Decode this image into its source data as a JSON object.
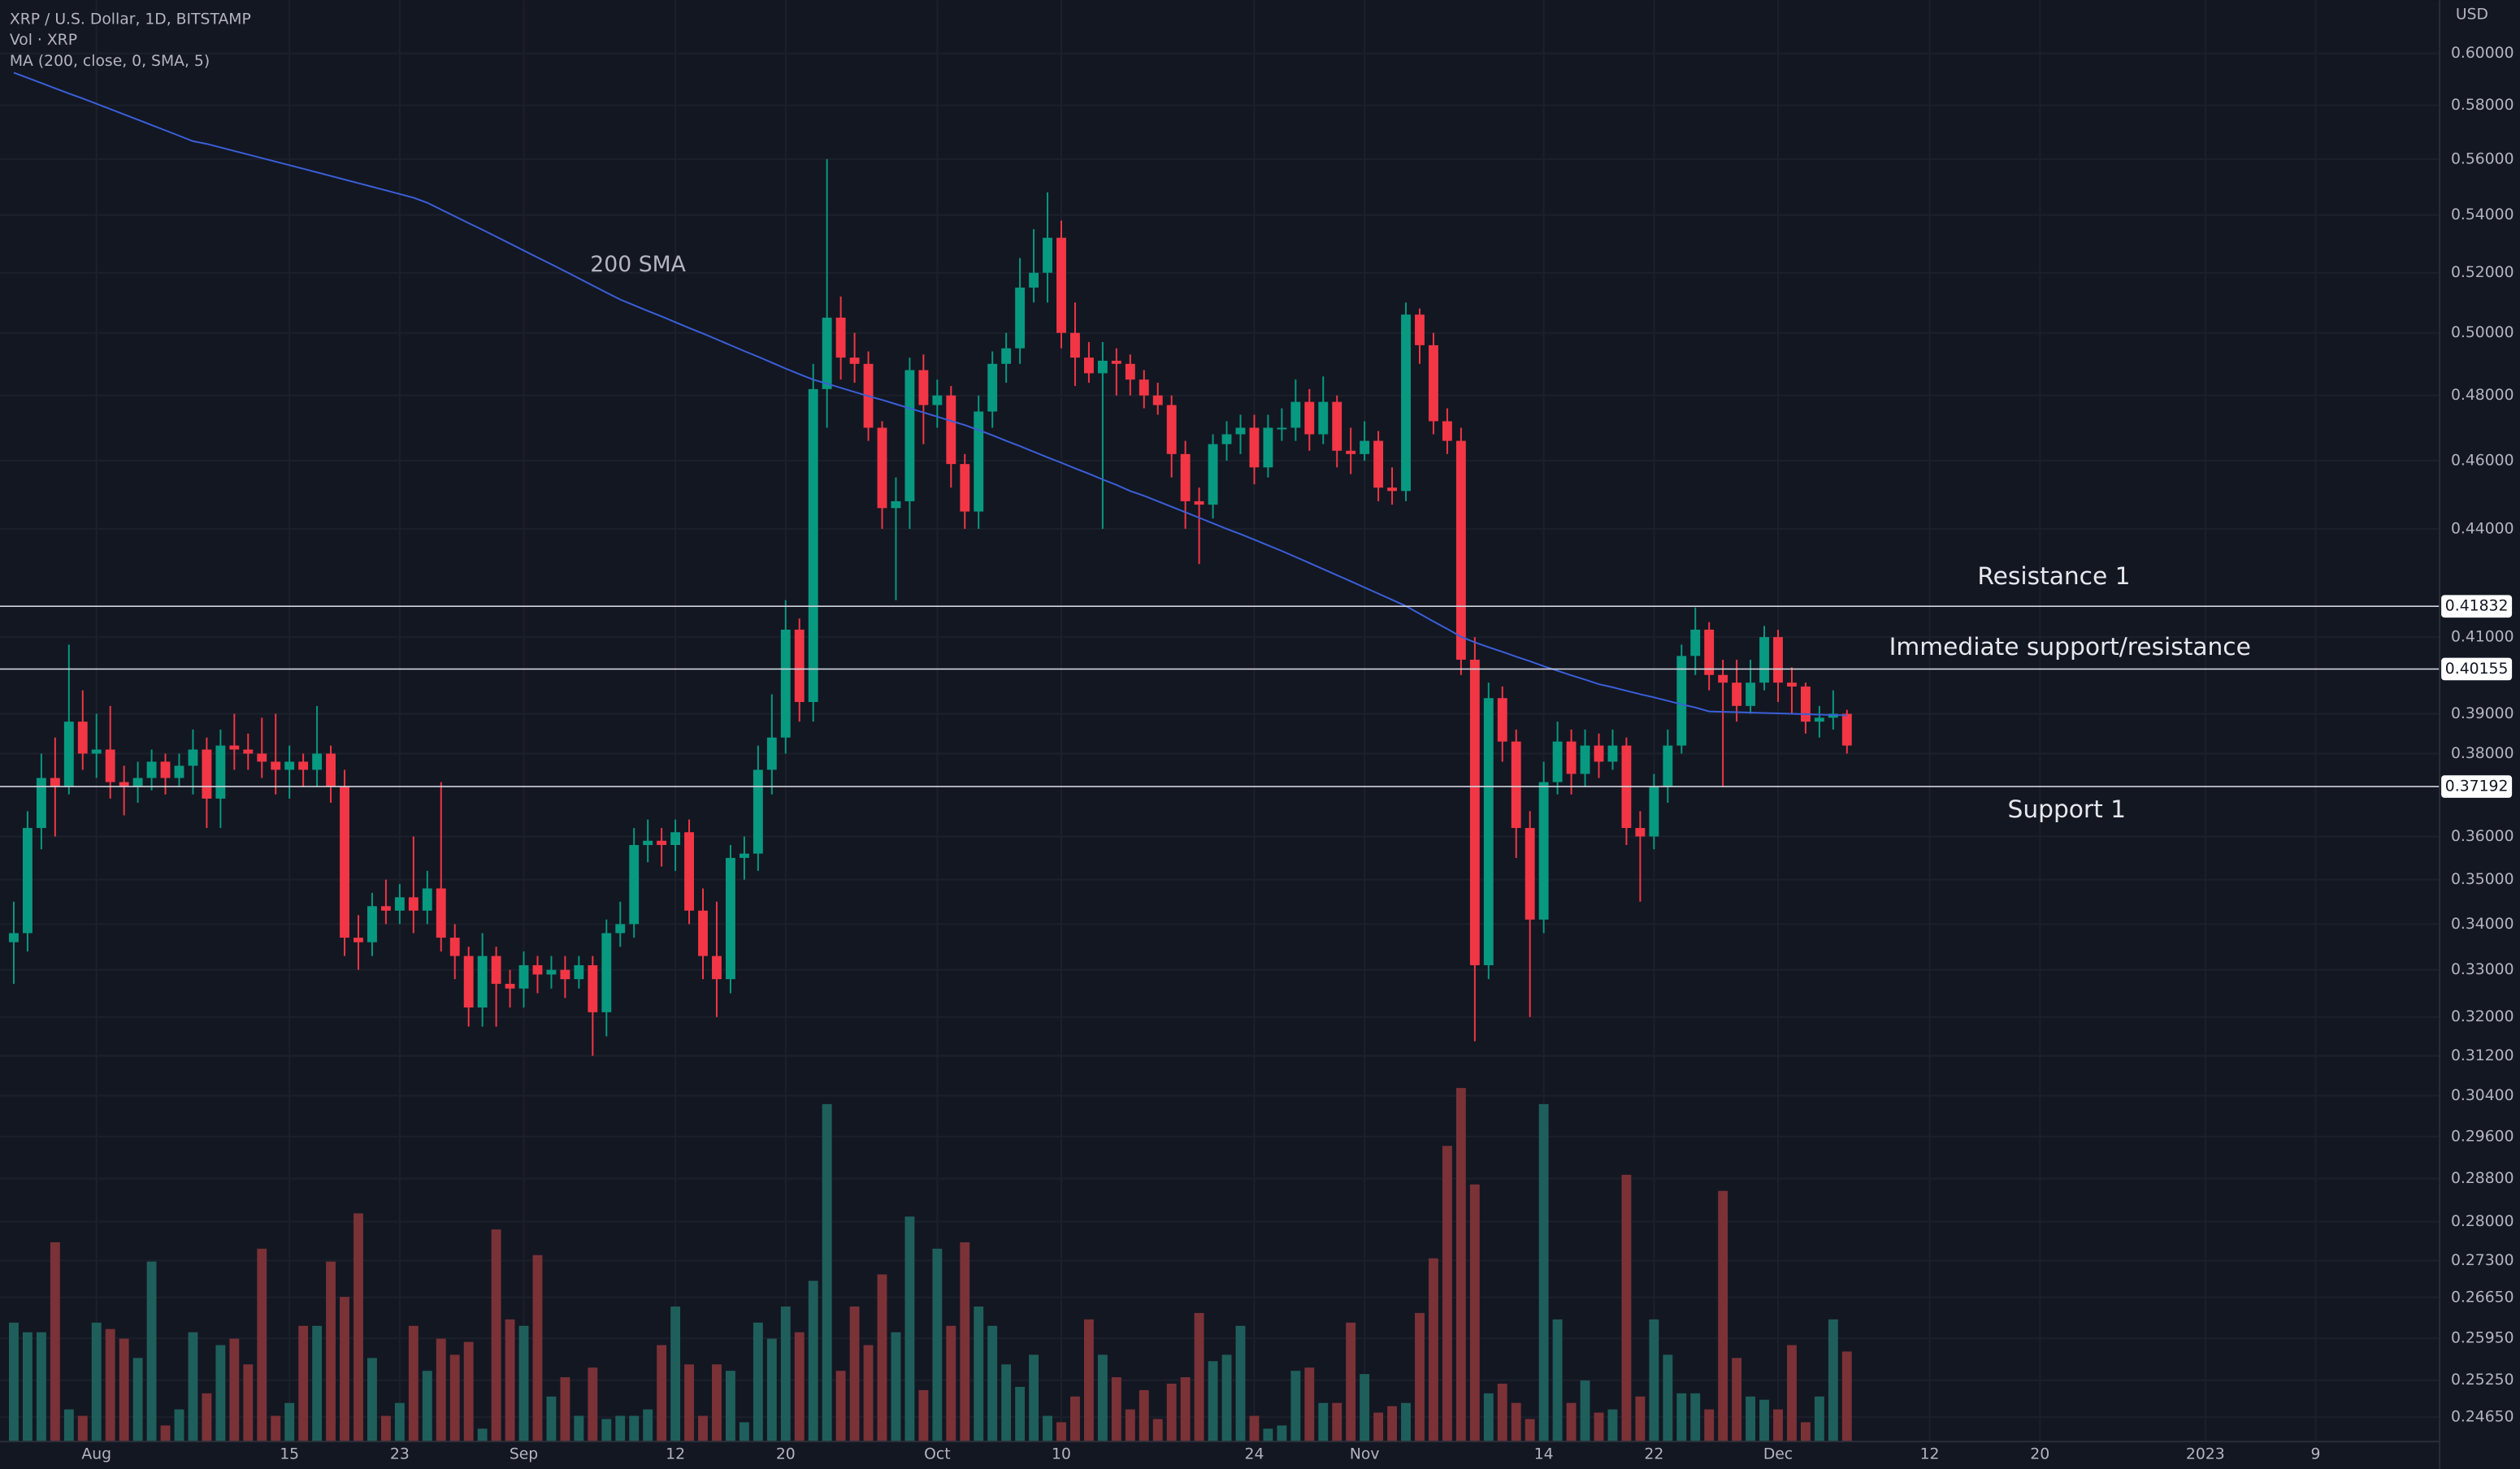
{
  "chart_data": {
    "type": "candlestick",
    "title": "XRP / U.S. Dollar, 1D, BITSTAMP",
    "volume_label": "Vol · XRP",
    "currency": "USD",
    "log_scale": true,
    "grid": true,
    "up_color": "#089981",
    "down_color": "#f23645",
    "volume_up_color": "#1f5f5b",
    "volume_down_color": "#7a3237",
    "xlim": [
      "2022-07-25",
      "2023-01-18"
    ],
    "xticks": [
      {
        "value": "2022-08-01",
        "label": "Aug"
      },
      {
        "value": "2022-08-15",
        "label": "15"
      },
      {
        "value": "2022-08-23",
        "label": "23"
      },
      {
        "value": "2022-09-01",
        "label": "Sep"
      },
      {
        "value": "2022-09-12",
        "label": "12"
      },
      {
        "value": "2022-09-20",
        "label": "20"
      },
      {
        "value": "2022-10-01",
        "label": "Oct"
      },
      {
        "value": "2022-10-10",
        "label": "10"
      },
      {
        "value": "2022-10-24",
        "label": "24"
      },
      {
        "value": "2022-11-01",
        "label": "Nov"
      },
      {
        "value": "2022-11-14",
        "label": "14"
      },
      {
        "value": "2022-11-22",
        "label": "22"
      },
      {
        "value": "2022-12-01",
        "label": "Dec"
      },
      {
        "value": "2022-12-12",
        "label": "12"
      },
      {
        "value": "2022-12-20",
        "label": "20"
      },
      {
        "value": "2023-01-01",
        "label": "2023"
      },
      {
        "value": "2023-01-09",
        "label": "9"
      }
    ],
    "ylim": [
      0.2426,
      0.6212
    ],
    "yticks": [
      {
        "value": 0.6,
        "label": "0.60000"
      },
      {
        "value": 0.58,
        "label": "0.58000"
      },
      {
        "value": 0.56,
        "label": "0.56000"
      },
      {
        "value": 0.54,
        "label": "0.54000"
      },
      {
        "value": 0.52,
        "label": "0.52000"
      },
      {
        "value": 0.5,
        "label": "0.50000"
      },
      {
        "value": 0.48,
        "label": "0.48000"
      },
      {
        "value": 0.46,
        "label": "0.46000"
      },
      {
        "value": 0.44,
        "label": "0.44000"
      },
      {
        "value": 0.41,
        "label": "0.41000"
      },
      {
        "value": 0.39,
        "label": "0.39000"
      },
      {
        "value": 0.38,
        "label": "0.38000"
      },
      {
        "value": 0.36,
        "label": "0.36000"
      },
      {
        "value": 0.35,
        "label": "0.35000"
      },
      {
        "value": 0.34,
        "label": "0.34000"
      },
      {
        "value": 0.33,
        "label": "0.33000"
      },
      {
        "value": 0.32,
        "label": "0.32000"
      },
      {
        "value": 0.312,
        "label": "0.31200"
      },
      {
        "value": 0.304,
        "label": "0.30400"
      },
      {
        "value": 0.296,
        "label": "0.29600"
      },
      {
        "value": 0.288,
        "label": "0.28800"
      },
      {
        "value": 0.28,
        "label": "0.28000"
      },
      {
        "value": 0.273,
        "label": "0.27300"
      },
      {
        "value": 0.2665,
        "label": "0.26650"
      },
      {
        "value": 0.2595,
        "label": "0.25950"
      },
      {
        "value": 0.2525,
        "label": "0.25250"
      },
      {
        "value": 0.2465,
        "label": "0.24650"
      }
    ],
    "volume_lim": [
      0,
      120
    ],
    "x": [
      "2022-07-26",
      "2022-07-27",
      "2022-07-28",
      "2022-07-29",
      "2022-07-30",
      "2022-07-31",
      "2022-08-01",
      "2022-08-02",
      "2022-08-03",
      "2022-08-04",
      "2022-08-05",
      "2022-08-06",
      "2022-08-07",
      "2022-08-08",
      "2022-08-09",
      "2022-08-10",
      "2022-08-11",
      "2022-08-12",
      "2022-08-13",
      "2022-08-14",
      "2022-08-15",
      "2022-08-16",
      "2022-08-17",
      "2022-08-18",
      "2022-08-19",
      "2022-08-20",
      "2022-08-21",
      "2022-08-22",
      "2022-08-23",
      "2022-08-24",
      "2022-08-25",
      "2022-08-26",
      "2022-08-27",
      "2022-08-28",
      "2022-08-29",
      "2022-08-30",
      "2022-08-31",
      "2022-09-01",
      "2022-09-02",
      "2022-09-03",
      "2022-09-04",
      "2022-09-05",
      "2022-09-06",
      "2022-09-07",
      "2022-09-08",
      "2022-09-09",
      "2022-09-10",
      "2022-09-11",
      "2022-09-12",
      "2022-09-13",
      "2022-09-14",
      "2022-09-15",
      "2022-09-16",
      "2022-09-17",
      "2022-09-18",
      "2022-09-19",
      "2022-09-20",
      "2022-09-21",
      "2022-09-22",
      "2022-09-23",
      "2022-09-24",
      "2022-09-25",
      "2022-09-26",
      "2022-09-27",
      "2022-09-28",
      "2022-09-29",
      "2022-09-30",
      "2022-10-01",
      "2022-10-02",
      "2022-10-03",
      "2022-10-04",
      "2022-10-05",
      "2022-10-06",
      "2022-10-07",
      "2022-10-08",
      "2022-10-09",
      "2022-10-10",
      "2022-10-11",
      "2022-10-12",
      "2022-10-13",
      "2022-10-14",
      "2022-10-15",
      "2022-10-16",
      "2022-10-17",
      "2022-10-18",
      "2022-10-19",
      "2022-10-20",
      "2022-10-21",
      "2022-10-22",
      "2022-10-23",
      "2022-10-24",
      "2022-10-25",
      "2022-10-26",
      "2022-10-27",
      "2022-10-28",
      "2022-10-29",
      "2022-10-30",
      "2022-10-31",
      "2022-11-01",
      "2022-11-02",
      "2022-11-03",
      "2022-11-04",
      "2022-11-05",
      "2022-11-06",
      "2022-11-07",
      "2022-11-08",
      "2022-11-09",
      "2022-11-10",
      "2022-11-11",
      "2022-11-12",
      "2022-11-13",
      "2022-11-14",
      "2022-11-15",
      "2022-11-16",
      "2022-11-17",
      "2022-11-18",
      "2022-11-19",
      "2022-11-20",
      "2022-11-21",
      "2022-11-22",
      "2022-11-23",
      "2022-11-24",
      "2022-11-25",
      "2022-11-26",
      "2022-11-27",
      "2022-11-28",
      "2022-11-29",
      "2022-11-30",
      "2022-12-01",
      "2022-12-02",
      "2022-12-03",
      "2022-12-04",
      "2022-12-05",
      "2022-12-06"
    ],
    "open": [
      0.336,
      0.338,
      0.362,
      0.374,
      0.372,
      0.388,
      0.38,
      0.381,
      0.373,
      0.372,
      0.374,
      0.378,
      0.374,
      0.377,
      0.381,
      0.369,
      0.382,
      0.381,
      0.38,
      0.378,
      0.376,
      0.378,
      0.376,
      0.38,
      0.372,
      0.337,
      0.336,
      0.344,
      0.343,
      0.346,
      0.343,
      0.348,
      0.337,
      0.333,
      0.322,
      0.333,
      0.327,
      0.326,
      0.331,
      0.329,
      0.33,
      0.328,
      0.331,
      0.321,
      0.338,
      0.34,
      0.358,
      0.359,
      0.358,
      0.361,
      0.343,
      0.333,
      0.328,
      0.355,
      0.356,
      0.376,
      0.384,
      0.412,
      0.393,
      0.482,
      0.505,
      0.492,
      0.49,
      0.47,
      0.446,
      0.448,
      0.488,
      0.477,
      0.48,
      0.459,
      0.445,
      0.475,
      0.49,
      0.495,
      0.515,
      0.52,
      0.532,
      0.5,
      0.492,
      0.487,
      0.491,
      0.49,
      0.485,
      0.48,
      0.477,
      0.462,
      0.448,
      0.447,
      0.465,
      0.468,
      0.47,
      0.458,
      0.47,
      0.47,
      0.478,
      0.468,
      0.478,
      0.463,
      0.462,
      0.466,
      0.452,
      0.451,
      0.506,
      0.496,
      0.472,
      0.466,
      0.404,
      0.331,
      0.394,
      0.383,
      0.362,
      0.341,
      0.373,
      0.383,
      0.375,
      0.382,
      0.378,
      0.382,
      0.362,
      0.36,
      0.372,
      0.382,
      0.405,
      0.412,
      0.4,
      0.398,
      0.392,
      0.398,
      0.41,
      0.398,
      0.397,
      0.388,
      0.389,
      0.39
    ],
    "high": [
      0.345,
      0.366,
      0.38,
      0.384,
      0.408,
      0.396,
      0.39,
      0.392,
      0.377,
      0.378,
      0.381,
      0.38,
      0.38,
      0.386,
      0.384,
      0.386,
      0.39,
      0.385,
      0.389,
      0.39,
      0.382,
      0.38,
      0.392,
      0.382,
      0.376,
      0.342,
      0.347,
      0.35,
      0.349,
      0.36,
      0.352,
      0.373,
      0.34,
      0.335,
      0.338,
      0.335,
      0.33,
      0.334,
      0.333,
      0.333,
      0.333,
      0.333,
      0.333,
      0.341,
      0.345,
      0.362,
      0.364,
      0.362,
      0.364,
      0.364,
      0.348,
      0.345,
      0.358,
      0.36,
      0.382,
      0.395,
      0.42,
      0.415,
      0.49,
      0.56,
      0.512,
      0.5,
      0.494,
      0.472,
      0.455,
      0.492,
      0.493,
      0.485,
      0.483,
      0.462,
      0.48,
      0.494,
      0.5,
      0.525,
      0.535,
      0.548,
      0.538,
      0.51,
      0.497,
      0.497,
      0.495,
      0.493,
      0.488,
      0.484,
      0.48,
      0.466,
      0.452,
      0.468,
      0.472,
      0.474,
      0.474,
      0.474,
      0.476,
      0.485,
      0.482,
      0.486,
      0.48,
      0.47,
      0.472,
      0.469,
      0.458,
      0.51,
      0.508,
      0.5,
      0.476,
      0.47,
      0.41,
      0.398,
      0.397,
      0.386,
      0.366,
      0.378,
      0.388,
      0.386,
      0.386,
      0.385,
      0.386,
      0.384,
      0.366,
      0.375,
      0.386,
      0.408,
      0.418,
      0.414,
      0.404,
      0.404,
      0.404,
      0.413,
      0.412,
      0.402,
      0.398,
      0.392,
      0.396,
      0.391
    ],
    "low": [
      0.327,
      0.334,
      0.357,
      0.36,
      0.37,
      0.376,
      0.374,
      0.369,
      0.365,
      0.368,
      0.371,
      0.37,
      0.372,
      0.37,
      0.362,
      0.362,
      0.376,
      0.376,
      0.374,
      0.37,
      0.369,
      0.372,
      0.372,
      0.368,
      0.333,
      0.33,
      0.333,
      0.34,
      0.34,
      0.338,
      0.34,
      0.334,
      0.328,
      0.318,
      0.318,
      0.318,
      0.322,
      0.322,
      0.325,
      0.326,
      0.324,
      0.326,
      0.312,
      0.316,
      0.335,
      0.337,
      0.354,
      0.353,
      0.352,
      0.34,
      0.328,
      0.32,
      0.325,
      0.35,
      0.352,
      0.37,
      0.38,
      0.388,
      0.388,
      0.47,
      0.485,
      0.484,
      0.466,
      0.44,
      0.42,
      0.44,
      0.465,
      0.47,
      0.452,
      0.44,
      0.44,
      0.47,
      0.484,
      0.49,
      0.51,
      0.51,
      0.495,
      0.483,
      0.484,
      0.44,
      0.48,
      0.48,
      0.476,
      0.474,
      0.455,
      0.44,
      0.43,
      0.443,
      0.46,
      0.462,
      0.453,
      0.455,
      0.466,
      0.466,
      0.463,
      0.465,
      0.458,
      0.456,
      0.46,
      0.448,
      0.447,
      0.448,
      0.49,
      0.468,
      0.462,
      0.4,
      0.315,
      0.328,
      0.378,
      0.355,
      0.32,
      0.338,
      0.37,
      0.37,
      0.372,
      0.374,
      0.376,
      0.358,
      0.345,
      0.357,
      0.368,
      0.38,
      0.4,
      0.396,
      0.372,
      0.388,
      0.39,
      0.396,
      0.393,
      0.39,
      0.385,
      0.384,
      0.386,
      0.38
    ],
    "close": [
      0.338,
      0.362,
      0.374,
      0.372,
      0.388,
      0.38,
      0.381,
      0.373,
      0.372,
      0.374,
      0.378,
      0.374,
      0.377,
      0.381,
      0.369,
      0.382,
      0.381,
      0.38,
      0.378,
      0.376,
      0.378,
      0.376,
      0.38,
      0.372,
      0.337,
      0.336,
      0.344,
      0.343,
      0.346,
      0.343,
      0.348,
      0.337,
      0.333,
      0.322,
      0.333,
      0.327,
      0.326,
      0.331,
      0.329,
      0.33,
      0.328,
      0.331,
      0.321,
      0.338,
      0.34,
      0.358,
      0.359,
      0.358,
      0.361,
      0.343,
      0.333,
      0.328,
      0.355,
      0.356,
      0.376,
      0.384,
      0.412,
      0.393,
      0.482,
      0.505,
      0.492,
      0.49,
      0.47,
      0.446,
      0.448,
      0.488,
      0.477,
      0.48,
      0.459,
      0.445,
      0.475,
      0.49,
      0.495,
      0.515,
      0.52,
      0.532,
      0.5,
      0.492,
      0.487,
      0.491,
      0.49,
      0.485,
      0.48,
      0.477,
      0.462,
      0.448,
      0.447,
      0.465,
      0.468,
      0.47,
      0.458,
      0.47,
      0.47,
      0.478,
      0.468,
      0.478,
      0.463,
      0.462,
      0.466,
      0.452,
      0.451,
      0.506,
      0.496,
      0.472,
      0.466,
      0.404,
      0.331,
      0.394,
      0.383,
      0.362,
      0.341,
      0.373,
      0.383,
      0.375,
      0.382,
      0.378,
      0.382,
      0.362,
      0.36,
      0.372,
      0.382,
      0.405,
      0.412,
      0.4,
      0.398,
      0.392,
      0.398,
      0.41,
      0.398,
      0.397,
      0.388,
      0.389,
      0.39,
      0.382
    ],
    "volume": [
      37,
      34,
      34,
      62,
      10,
      8,
      37,
      35,
      32,
      26,
      56,
      5,
      10,
      34,
      15,
      30,
      32,
      24,
      60,
      8,
      12,
      36,
      36,
      56,
      45,
      71,
      26,
      8,
      12,
      36,
      22,
      32,
      27,
      31,
      4,
      66,
      38,
      36,
      58,
      14,
      20,
      8,
      23,
      7,
      8,
      8,
      10,
      30,
      42,
      24,
      8,
      24,
      22,
      6,
      37,
      32,
      42,
      34,
      50,
      105,
      22,
      42,
      30,
      52,
      34,
      70,
      16,
      60,
      36,
      62,
      42,
      36,
      24,
      17,
      27,
      8,
      6,
      14,
      38,
      27,
      20,
      10,
      16,
      7,
      18,
      20,
      40,
      25,
      27,
      36,
      8,
      4,
      5,
      22,
      23,
      12,
      12,
      37,
      21,
      9,
      11,
      12,
      40,
      57,
      92,
      110,
      80,
      15,
      18,
      12,
      7,
      105,
      38,
      12,
      19,
      9,
      10,
      83,
      14,
      38,
      27,
      15,
      15,
      10,
      78,
      26,
      14,
      13,
      10,
      30,
      6,
      14,
      38,
      28
    ],
    "ma": {
      "name": "MA (200, close, 0, SMA, 5)",
      "color": "#3a5fd9",
      "values": [
        0.5925,
        0.5905,
        0.5885,
        0.5865,
        0.5845,
        0.5826,
        0.5806,
        0.5786,
        0.5766,
        0.5746,
        0.5726,
        0.5706,
        0.5686,
        0.5666,
        0.5656,
        0.5643,
        0.563,
        0.5617,
        0.5604,
        0.5591,
        0.5578,
        0.5565,
        0.5552,
        0.5539,
        0.5526,
        0.5513,
        0.55,
        0.5487,
        0.5474,
        0.5461,
        0.5443,
        0.5419,
        0.5395,
        0.5371,
        0.5348,
        0.5324,
        0.53,
        0.5276,
        0.5252,
        0.5229,
        0.5205,
        0.5181,
        0.5157,
        0.5133,
        0.511,
        0.5091,
        0.5072,
        0.5054,
        0.5035,
        0.5016,
        0.4998,
        0.4979,
        0.496,
        0.4941,
        0.4923,
        0.4904,
        0.4885,
        0.4867,
        0.485,
        0.4837,
        0.4824,
        0.4811,
        0.4798,
        0.4786,
        0.4773,
        0.476,
        0.4747,
        0.4734,
        0.4721,
        0.4708,
        0.4693,
        0.4677,
        0.466,
        0.4644,
        0.4627,
        0.461,
        0.4594,
        0.4577,
        0.4561,
        0.4544,
        0.4528,
        0.451,
        0.4496,
        0.448,
        0.4464,
        0.4448,
        0.4432,
        0.4416,
        0.44,
        0.4385,
        0.4369,
        0.4353,
        0.4337,
        0.432,
        0.4303,
        0.4286,
        0.4269,
        0.4252,
        0.4235,
        0.4218,
        0.4201,
        0.4184,
        0.4163,
        0.4142,
        0.4122,
        0.4101,
        0.4086,
        0.4073,
        0.4061,
        0.4048,
        0.4036,
        0.4023,
        0.4011,
        0.3999,
        0.3988,
        0.3976,
        0.3968,
        0.3959,
        0.395,
        0.3942,
        0.3933,
        0.3924,
        0.3916,
        0.3906,
        0.3905,
        0.3904,
        0.3903,
        0.3902,
        0.3901,
        0.39,
        0.3899,
        0.3898,
        0.3897,
        0.3896
      ]
    },
    "annotations": [
      {
        "text": "200 SMA",
        "color": "#3a5fd9"
      }
    ],
    "hlines": [
      {
        "value": 0.41832,
        "label": "Resistance 1"
      },
      {
        "value": 0.40155,
        "label": "Immediate support/resistance"
      },
      {
        "value": 0.37192,
        "label": "Support 1"
      }
    ],
    "hline_color": "#d1d4dc"
  }
}
